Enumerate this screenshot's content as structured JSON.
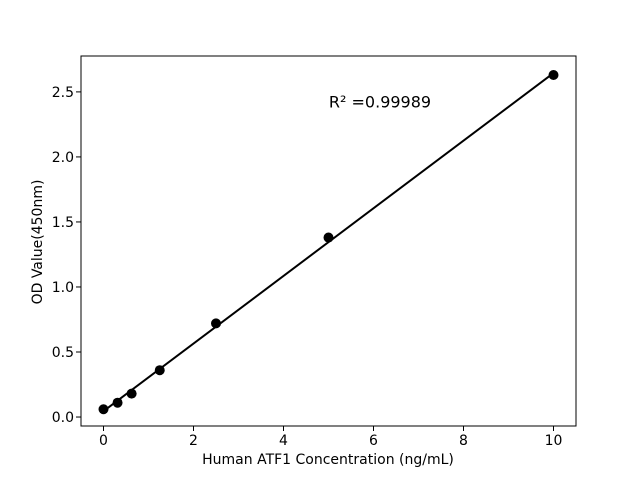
{
  "figure": {
    "background": "#ffffff",
    "text_color": "#000000"
  },
  "chart_data": {
    "type": "scatter",
    "title": "",
    "xlabel": "Human ATF1 Concentration (ng/mL)",
    "ylabel": "OD Value(450nm)",
    "x": [
      0,
      0.3125,
      0.625,
      1.25,
      2.5,
      5,
      10
    ],
    "y": [
      0.06,
      0.11,
      0.18,
      0.36,
      0.72,
      1.38,
      2.63
    ],
    "fit": {
      "slope": 0.26,
      "intercept": 0.045,
      "x_start": 0,
      "x_end": 10
    },
    "annotation": {
      "text": "R² =0.99989"
    },
    "xticks": {
      "values": [
        0,
        2,
        4,
        6,
        8,
        10
      ],
      "labels": [
        "0",
        "2",
        "4",
        "6",
        "8",
        "10"
      ]
    },
    "yticks": {
      "values": [
        0.0,
        0.5,
        1.0,
        1.5,
        2.0,
        2.5
      ],
      "labels": [
        "0.0",
        "0.5",
        "1.0",
        "1.5",
        "2.0",
        "2.5"
      ]
    },
    "xlim": [
      -0.5,
      10.5
    ],
    "ylim": [
      -0.069,
      2.776
    ],
    "grid": false,
    "legend": null,
    "marker_color": "#000000",
    "line_color": "#000000",
    "axis_color": "#000000"
  }
}
